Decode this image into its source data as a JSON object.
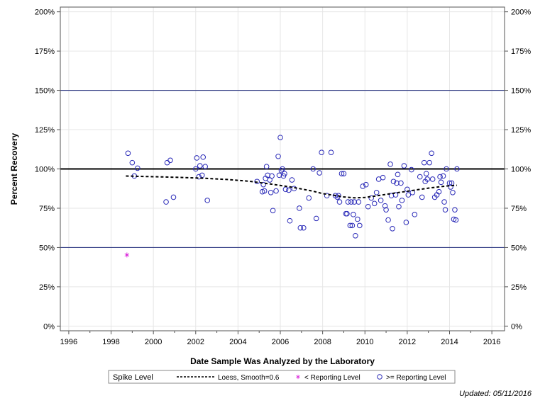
{
  "chart_data": {
    "type": "scatter",
    "xlabel": "Date Sample Was Analyzed by the Laboratory",
    "ylabel": "Percent Recovery",
    "xlim": [
      1995.6,
      2016.6
    ],
    "ylim": [
      -3,
      203
    ],
    "x_ticks": [
      "1996",
      "1998",
      "2000",
      "2002",
      "2004",
      "2006",
      "2008",
      "2010",
      "2012",
      "2014",
      "2016"
    ],
    "y_ticks": [
      "0%",
      "25%",
      "50%",
      "75%",
      "100%",
      "125%",
      "150%",
      "175%",
      "200%"
    ],
    "reference_lines": [
      {
        "y": 50,
        "style": "thin",
        "color": "#1f2a7a"
      },
      {
        "y": 100,
        "style": "bold",
        "color": "#000000"
      },
      {
        "y": 150,
        "style": "thin",
        "color": "#1f2a7a"
      }
    ],
    "grid": true,
    "legend_position": "bottom",
    "legend": {
      "title": "Spike Level",
      "items": [
        {
          "label": "Loess, Smooth=0.6",
          "symbol": "dashed-line"
        },
        {
          "label": "< Reporting Level",
          "symbol": "asterisk"
        },
        {
          "label": ">= Reporting Level",
          "symbol": "circle"
        }
      ]
    },
    "colors": {
      "circle": "#2a2ab8",
      "asterisk": "#d400d4",
      "loess": "#000000"
    },
    "series": [
      {
        "name": ">= Reporting Level",
        "symbol": "circle",
        "points": [
          [
            1998.8,
            110
          ],
          [
            1999.0,
            104
          ],
          [
            1999.1,
            95.5
          ],
          [
            1999.25,
            100.5
          ],
          [
            2000.6,
            79
          ],
          [
            2000.65,
            104
          ],
          [
            2000.8,
            105.5
          ],
          [
            2000.95,
            82
          ],
          [
            2002.0,
            100
          ],
          [
            2002.05,
            107
          ],
          [
            2002.15,
            95
          ],
          [
            2002.2,
            102
          ],
          [
            2002.3,
            96
          ],
          [
            2002.35,
            107.5
          ],
          [
            2002.45,
            101.5
          ],
          [
            2002.55,
            80
          ],
          [
            2004.9,
            92
          ],
          [
            2005.15,
            85.5
          ],
          [
            2005.2,
            90
          ],
          [
            2005.25,
            86
          ],
          [
            2005.3,
            94
          ],
          [
            2005.35,
            101.5
          ],
          [
            2005.4,
            96
          ],
          [
            2005.5,
            93
          ],
          [
            2005.55,
            85
          ],
          [
            2005.6,
            95.5
          ],
          [
            2005.65,
            73.5
          ],
          [
            2005.8,
            86
          ],
          [
            2005.9,
            108
          ],
          [
            2005.95,
            96
          ],
          [
            2006.0,
            120
          ],
          [
            2006.05,
            99
          ],
          [
            2006.1,
            100
          ],
          [
            2006.15,
            95.5
          ],
          [
            2006.2,
            97
          ],
          [
            2006.25,
            87
          ],
          [
            2006.4,
            86.5
          ],
          [
            2006.45,
            67
          ],
          [
            2006.55,
            93
          ],
          [
            2006.65,
            87.5
          ],
          [
            2006.9,
            75
          ],
          [
            2006.95,
            62.5
          ],
          [
            2007.1,
            62.5
          ],
          [
            2007.35,
            81.5
          ],
          [
            2007.55,
            100
          ],
          [
            2007.7,
            68.5
          ],
          [
            2007.85,
            97.5
          ],
          [
            2007.95,
            110.5
          ],
          [
            2008.2,
            83
          ],
          [
            2008.4,
            110.5
          ],
          [
            2008.6,
            83
          ],
          [
            2008.7,
            82
          ],
          [
            2008.75,
            83
          ],
          [
            2008.8,
            79
          ],
          [
            2008.9,
            97
          ],
          [
            2009.0,
            97
          ],
          [
            2009.1,
            71.5
          ],
          [
            2009.15,
            71.5
          ],
          [
            2009.2,
            79
          ],
          [
            2009.3,
            64
          ],
          [
            2009.35,
            79
          ],
          [
            2009.4,
            64
          ],
          [
            2009.45,
            71
          ],
          [
            2009.5,
            79
          ],
          [
            2009.55,
            57.5
          ],
          [
            2009.65,
            68
          ],
          [
            2009.7,
            79
          ],
          [
            2009.75,
            64
          ],
          [
            2009.9,
            89
          ],
          [
            2010.05,
            90
          ],
          [
            2010.15,
            76
          ],
          [
            2010.3,
            81.5
          ],
          [
            2010.45,
            78
          ],
          [
            2010.55,
            85
          ],
          [
            2010.65,
            93.5
          ],
          [
            2010.75,
            80
          ],
          [
            2010.85,
            94.5
          ],
          [
            2010.95,
            76.5
          ],
          [
            2011.0,
            74
          ],
          [
            2011.1,
            67.5
          ],
          [
            2011.2,
            103
          ],
          [
            2011.25,
            83
          ],
          [
            2011.3,
            62
          ],
          [
            2011.35,
            92
          ],
          [
            2011.45,
            83.5
          ],
          [
            2011.5,
            91
          ],
          [
            2011.55,
            96.5
          ],
          [
            2011.6,
            76
          ],
          [
            2011.7,
            91
          ],
          [
            2011.75,
            80
          ],
          [
            2011.85,
            102
          ],
          [
            2011.95,
            66
          ],
          [
            2012.0,
            87
          ],
          [
            2012.05,
            83.5
          ],
          [
            2012.2,
            99.5
          ],
          [
            2012.25,
            85
          ],
          [
            2012.35,
            71
          ],
          [
            2012.6,
            95
          ],
          [
            2012.7,
            82
          ],
          [
            2012.8,
            104
          ],
          [
            2012.85,
            92
          ],
          [
            2012.9,
            97
          ],
          [
            2012.95,
            93.5
          ],
          [
            2013.05,
            104
          ],
          [
            2013.15,
            110
          ],
          [
            2013.2,
            93.5
          ],
          [
            2013.3,
            82
          ],
          [
            2013.4,
            83.5
          ],
          [
            2013.5,
            85.5
          ],
          [
            2013.55,
            95
          ],
          [
            2013.6,
            91.5
          ],
          [
            2013.7,
            95.5
          ],
          [
            2013.75,
            79
          ],
          [
            2013.8,
            74
          ],
          [
            2013.85,
            100
          ],
          [
            2014.0,
            91
          ],
          [
            2014.05,
            88.5
          ],
          [
            2014.1,
            91
          ],
          [
            2014.15,
            85
          ],
          [
            2014.2,
            68
          ],
          [
            2014.25,
            74
          ],
          [
            2014.3,
            67.5
          ],
          [
            2014.35,
            100
          ]
        ]
      },
      {
        "name": "< Reporting Level",
        "symbol": "asterisk",
        "points": [
          [
            1998.75,
            44.5
          ]
        ]
      },
      {
        "name": "Loess, Smooth=0.6",
        "symbol": "dashed-line",
        "points": [
          [
            1998.7,
            95.5
          ],
          [
            1999.5,
            95.2
          ],
          [
            2000.5,
            94.9
          ],
          [
            2001.5,
            94.5
          ],
          [
            2002.5,
            94
          ],
          [
            2003.5,
            93.3
          ],
          [
            2004.5,
            92.2
          ],
          [
            2005.5,
            90.5
          ],
          [
            2006.5,
            88.5
          ],
          [
            2007.5,
            86
          ],
          [
            2008.0,
            84.3
          ],
          [
            2008.5,
            83.3
          ],
          [
            2009.0,
            82.2
          ],
          [
            2009.5,
            81.6
          ],
          [
            2010.0,
            81.9
          ],
          [
            2010.5,
            82.8
          ],
          [
            2011.0,
            83.8
          ],
          [
            2011.5,
            84.8
          ],
          [
            2012.0,
            85.8
          ],
          [
            2012.5,
            86.8
          ],
          [
            2013.0,
            87.8
          ],
          [
            2013.5,
            88.6
          ],
          [
            2014.0,
            89.3
          ],
          [
            2014.35,
            89.6
          ]
        ]
      }
    ]
  },
  "footer": {
    "updated": "Updated: 05/11/2016"
  }
}
